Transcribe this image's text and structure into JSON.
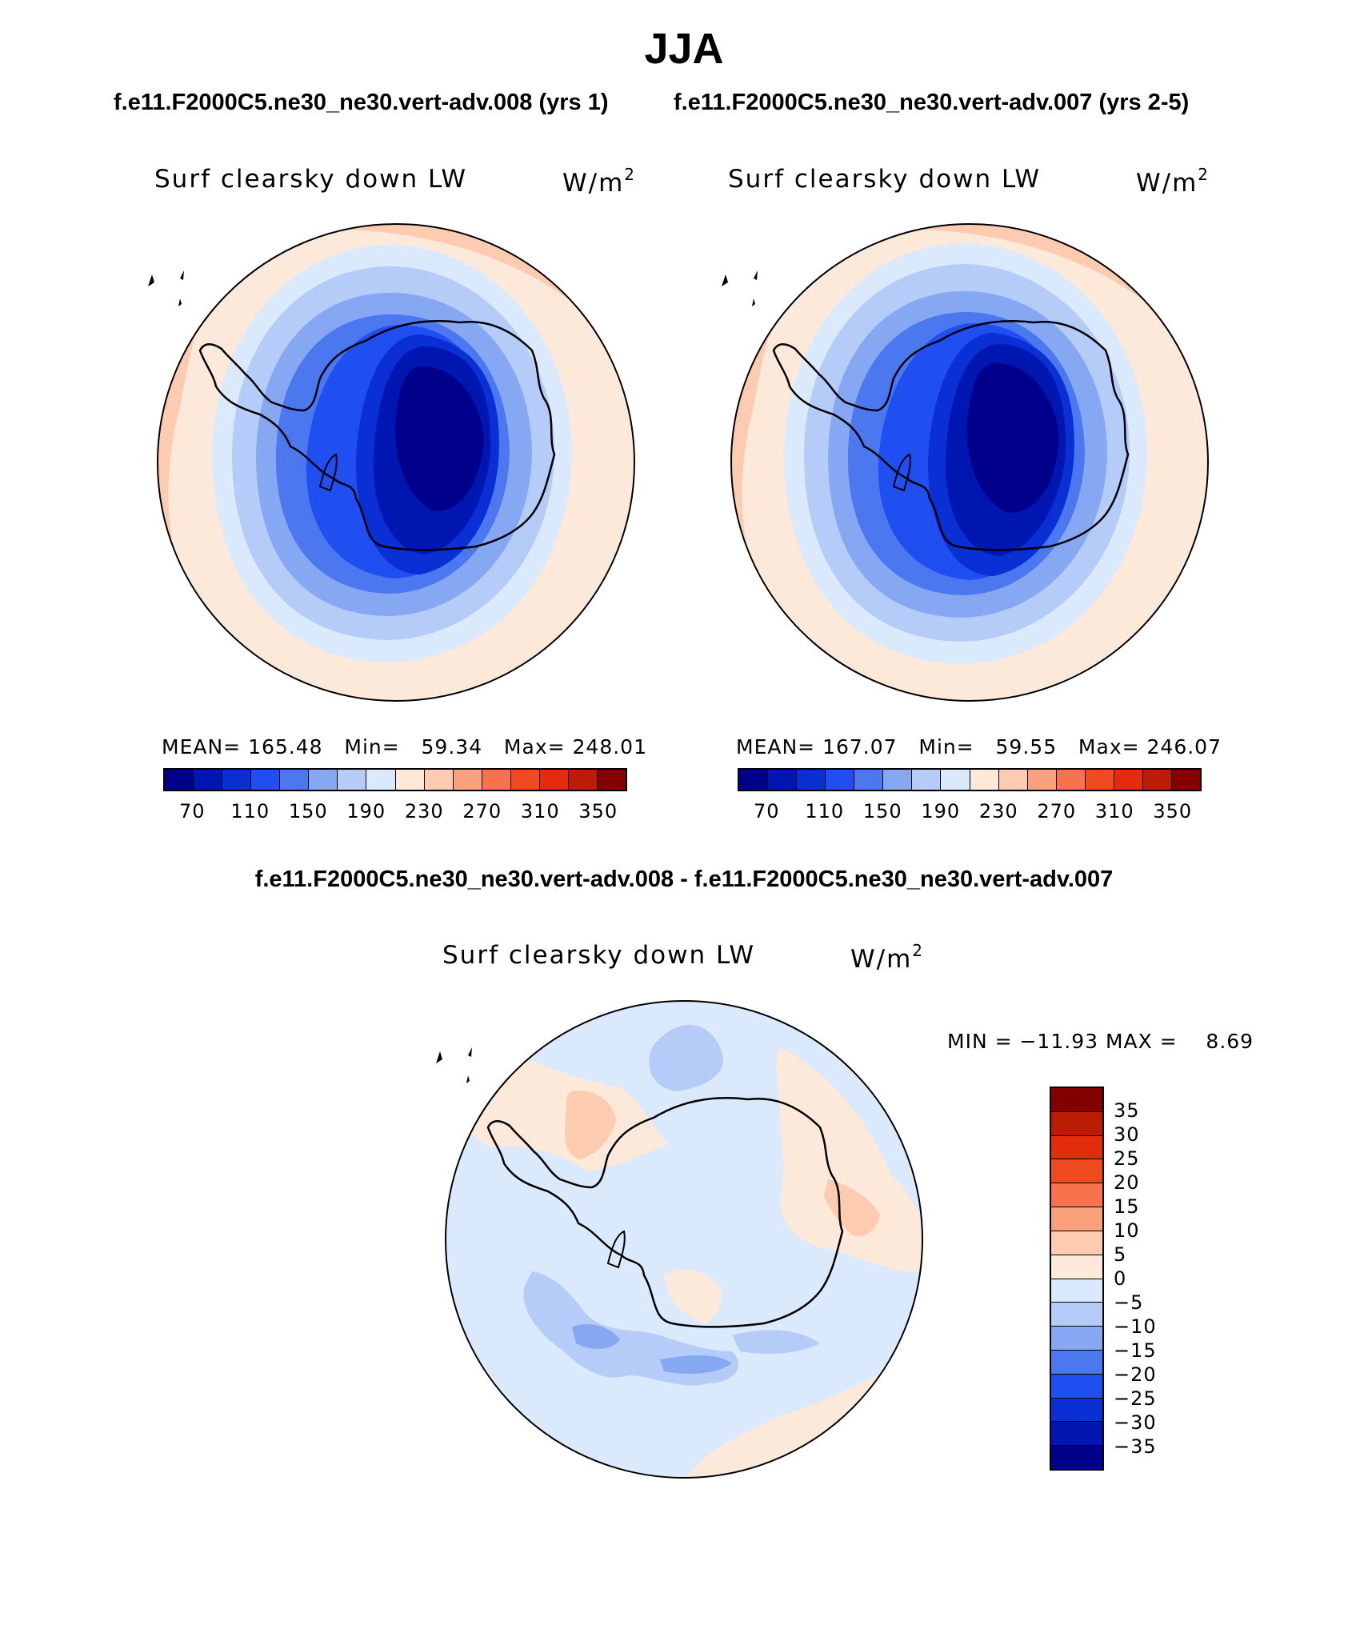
{
  "title": "JJA",
  "subtitle_left": "f.e11.F2000C5.ne30_ne30.vert-adv.008 (yrs 1)",
  "subtitle_right": "f.e11.F2000C5.ne30_ne30.vert-adv.007 (yrs 2-5)",
  "panels": [
    {
      "variable": "Surf clearsky down LW",
      "unit_base": "W/m",
      "unit_exp": "2",
      "stats": "MEAN= 165.48   Min=   59.34   Max= 248.01"
    },
    {
      "variable": "Surf clearsky down LW",
      "unit_base": "W/m",
      "unit_exp": "2",
      "stats": "MEAN= 167.07   Min=   59.55   Max= 246.07"
    }
  ],
  "colorbar": {
    "colors": [
      "#00008b",
      "#0016b0",
      "#0a2fd4",
      "#1f4ff0",
      "#4b78ee",
      "#86a7f2",
      "#b6ccf8",
      "#dbe9fc",
      "#fde9d9",
      "#fccbb0",
      "#fba07c",
      "#f6734c",
      "#f04a1f",
      "#e32c0c",
      "#bb1c04",
      "#840000"
    ],
    "ticks": [
      "70",
      "110",
      "150",
      "190",
      "230",
      "270",
      "310",
      "350"
    ]
  },
  "difference": {
    "title": "f.e11.F2000C5.ne30_ne30.vert-adv.008 - f.e11.F2000C5.ne30_ne30.vert-adv.007",
    "variable": "Surf clearsky down LW",
    "unit_base": "W/m",
    "unit_exp": "2",
    "minmax": "MIN = −11.93 MAX =    8.69",
    "colors": [
      "#840000",
      "#bb1c04",
      "#e32c0c",
      "#f04a1f",
      "#f6734c",
      "#fba07c",
      "#fccbb0",
      "#fde9d9",
      "#dbe9fc",
      "#b6ccf8",
      "#86a7f2",
      "#4b78ee",
      "#1f4ff0",
      "#0a2fd4",
      "#0016b0",
      "#00008b"
    ],
    "ticks": [
      "35",
      "30",
      "25",
      "20",
      "15",
      "10",
      "5",
      "0",
      "−5",
      "−10",
      "−15",
      "−20",
      "−25",
      "−30",
      "−35"
    ]
  }
}
